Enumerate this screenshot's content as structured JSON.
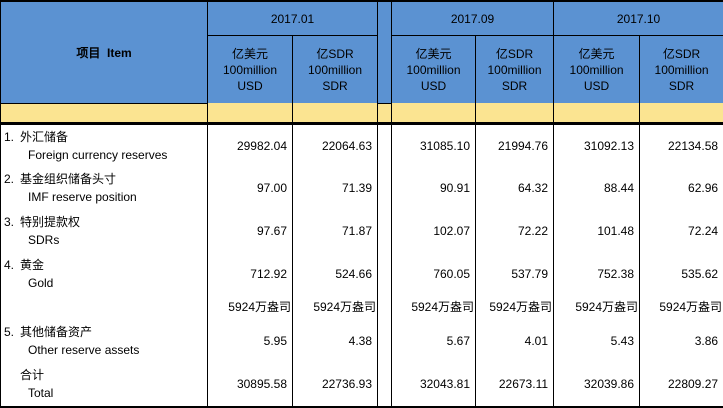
{
  "table": {
    "item_header": "项目  Item",
    "periods": [
      "2017.01",
      "2017.09",
      "2017.10"
    ],
    "units": {
      "usd": {
        "l1": "亿美元",
        "l2": "100million",
        "l3": "USD"
      },
      "sdr": {
        "l1": "亿SDR",
        "l2": "100million",
        "l3": "SDR"
      }
    },
    "rows": [
      {
        "num": "1.",
        "zh": "外汇储备",
        "en": "Foreign currency reserves",
        "values": [
          "29982.04",
          "22064.63",
          "31085.10",
          "21994.76",
          "31092.13",
          "22134.58"
        ]
      },
      {
        "num": "2.",
        "zh": "基金组织储备头寸",
        "en": "IMF reserve position",
        "values": [
          "97.00",
          "71.39",
          "90.91",
          "64.32",
          "88.44",
          "62.96"
        ]
      },
      {
        "num": "3.",
        "zh": "特别提款权",
        "en": "SDRs",
        "values": [
          "97.67",
          "71.87",
          "102.07",
          "72.22",
          "101.48",
          "72.24"
        ]
      },
      {
        "num": "4.",
        "zh": "黄金",
        "en": "Gold",
        "values": [
          "712.92",
          "524.66",
          "760.05",
          "537.79",
          "752.38",
          "535.62"
        ]
      },
      {
        "num": "",
        "zh": "",
        "en": "",
        "values": [
          "5924万盎司",
          "5924万盎司",
          "5924万盎司",
          "5924万盎司",
          "5924万盎司",
          "5924万盎司"
        ]
      },
      {
        "num": "5.",
        "zh": "其他储备资产",
        "en": "Other reserve assets",
        "values": [
          "5.95",
          "4.38",
          "5.67",
          "4.01",
          "5.43",
          "3.86"
        ]
      },
      {
        "num": "",
        "zh": "合计",
        "en": "Total",
        "values": [
          "30895.58",
          "22736.93",
          "32043.81",
          "22673.11",
          "32039.86",
          "22809.27"
        ]
      }
    ],
    "colors": {
      "header_bg": "#5B92D2",
      "band_bg": "#FBE491",
      "border": "#000000",
      "text": "#000000"
    }
  }
}
